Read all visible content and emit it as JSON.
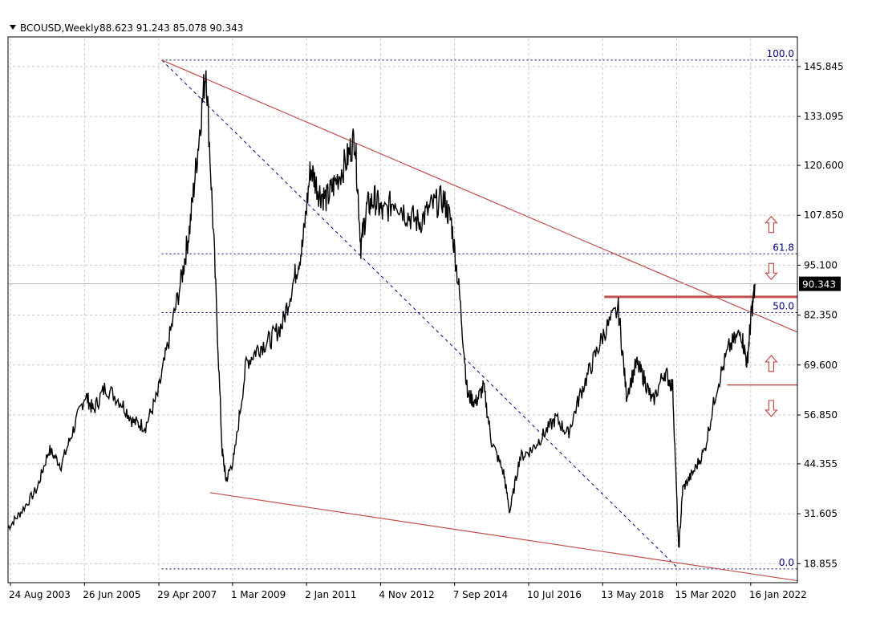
{
  "header": {
    "symbol": "BCOUSD,Weekly",
    "ohlc": "88.623 91.243 85.078 90.343"
  },
  "current_price": "90.343",
  "colors": {
    "price_line": "#000000",
    "trend_line": "#c0504d",
    "fib_line": "#00007f",
    "grid": "#c8c8c8",
    "arrow": "#c0504d"
  },
  "chart_data": {
    "type": "line",
    "title": "",
    "xlabel": "",
    "ylabel": "",
    "ylim": [
      14.0,
      153.0
    ],
    "y_ticks": [
      "145.845",
      "133.095",
      "120.600",
      "107.850",
      "95.100",
      "82.350",
      "69.600",
      "56.850",
      "44.355",
      "31.605",
      "18.855"
    ],
    "y_tick_values": [
      145.845,
      133.095,
      120.6,
      107.85,
      95.1,
      82.35,
      69.6,
      56.85,
      44.355,
      31.605,
      18.855
    ],
    "x_ticks": [
      "24 Aug 2003",
      "26 Jun 2005",
      "29 Apr 2007",
      "1 Mar 2009",
      "2 Jan 2011",
      "4 Nov 2012",
      "7 Sep 2014",
      "10 Jul 2016",
      "13 May 2018",
      "15 Mar 2020",
      "16 Jan 2022"
    ],
    "x_tick_years": [
      2003.64,
      2005.48,
      2007.33,
      2009.16,
      2011.0,
      2012.84,
      2014.68,
      2016.52,
      2018.36,
      2020.2,
      2022.04
    ],
    "xlim": [
      2003.58,
      2023.2
    ],
    "series": [
      {
        "x": [
          2003.58,
          2003.9,
          2004.3,
          2004.6,
          2004.9,
          2005.2,
          2005.5,
          2005.7,
          2006.0,
          2006.4,
          2006.7,
          2007.0,
          2007.3,
          2007.6,
          2007.9,
          2008.1,
          2008.3,
          2008.5,
          2008.7,
          2008.9,
          2009.0,
          2009.2,
          2009.5,
          2009.8,
          2010.1,
          2010.4,
          2010.7,
          2010.9,
          2011.1,
          2011.3,
          2011.5,
          2011.7,
          2012.0,
          2012.2,
          2012.35,
          2012.5,
          2012.7,
          2012.9,
          2013.2,
          2013.5,
          2013.8,
          2014.1,
          2014.4,
          2014.6,
          2014.8,
          2015.0,
          2015.2,
          2015.4,
          2015.6,
          2015.9,
          2016.05,
          2016.3,
          2016.6,
          2016.9,
          2017.2,
          2017.5,
          2017.8,
          2018.1,
          2018.4,
          2018.75,
          2018.95,
          2019.2,
          2019.4,
          2019.6,
          2019.9,
          2020.1,
          2020.25,
          2020.35,
          2020.6,
          2020.9,
          2021.2,
          2021.5,
          2021.8,
          2021.95,
          2022.05,
          2022.15
        ],
        "y": [
          28,
          32,
          38,
          48,
          44,
          53,
          62,
          58,
          64,
          60,
          55,
          54,
          62,
          77,
          92,
          105,
          125,
          146,
          100,
          48,
          40,
          46,
          70,
          74,
          76,
          80,
          92,
          100,
          120,
          114,
          112,
          116,
          122,
          128,
          100,
          110,
          112,
          108,
          112,
          108,
          106,
          110,
          112,
          106,
          88,
          62,
          60,
          64,
          50,
          42,
          32,
          46,
          48,
          52,
          56,
          52,
          62,
          70,
          78,
          84,
          62,
          70,
          66,
          60,
          68,
          64,
          22,
          38,
          42,
          48,
          64,
          74,
          78,
          70,
          82,
          90
        ]
      }
    ],
    "fib_levels": [
      {
        "label": "100.0",
        "value": 147.5
      },
      {
        "label": "61.8",
        "value": 98.0
      },
      {
        "label": "50.0",
        "value": 83.0
      },
      {
        "label": "0.0",
        "value": 17.5
      }
    ],
    "trend_lines": [
      {
        "from": [
          2007.4,
          147.5
        ],
        "to": [
          2023.2,
          78.0
        ]
      },
      {
        "from": [
          2008.6,
          37.0
        ],
        "to": [
          2023.2,
          14.5
        ]
      }
    ],
    "fib_diagonal": {
      "from": [
        2007.4,
        147.5
      ],
      "to": [
        2020.25,
        17.5
      ]
    },
    "levels": [
      {
        "from": [
          2018.4,
          87.0
        ],
        "to": [
          2023.2,
          87.0
        ],
        "thickness": 3
      },
      {
        "from": [
          2021.45,
          64.5
        ],
        "to": [
          2023.2,
          64.5
        ],
        "thickness": 1.5
      }
    ],
    "arrows": [
      {
        "direction": "up",
        "x": 2022.55,
        "y": 105.5
      },
      {
        "direction": "down",
        "x": 2022.55,
        "y": 93.5
      },
      {
        "direction": "up",
        "x": 2022.55,
        "y": 70.0
      },
      {
        "direction": "down",
        "x": 2022.55,
        "y": 58.5
      }
    ],
    "grid": true,
    "legend": "none"
  }
}
